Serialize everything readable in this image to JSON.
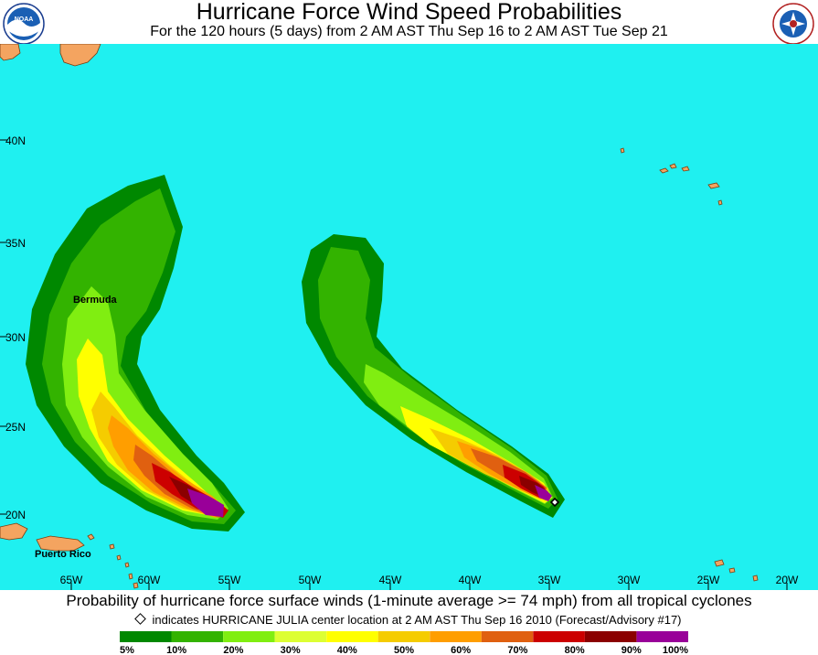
{
  "title": "Hurricane Force Wind Speed Probabilities",
  "subtitle": "For the 120 hours (5 days) from 2 AM AST Thu Sep 16 to 2 AM AST Tue Sep 21",
  "logos": {
    "left": "noaa-logo",
    "right": "national-weather-service-logo"
  },
  "map": {
    "ocean_color": "#1ff0f0",
    "land_color": "#f4a460",
    "lat_labels": [
      "40N",
      "35N",
      "30N",
      "25N",
      "20N"
    ],
    "lon_labels": [
      "65W",
      "60W",
      "55W",
      "50W",
      "45W",
      "40W",
      "35W",
      "30W",
      "25W",
      "20W"
    ],
    "places": [
      "Bermuda",
      "Puerto Rico"
    ]
  },
  "caption": "Probability of hurricane force surface winds (1-minute average >= 74 mph) from all tropical cyclones",
  "note": "indicates HURRICANE JULIA center location at 2 AM AST Thu Sep 16 2010 (Forecast/Advisory #17)",
  "legend": {
    "labels": [
      "5%",
      "10%",
      "20%",
      "30%",
      "40%",
      "50%",
      "60%",
      "70%",
      "80%",
      "90%",
      "100%"
    ],
    "colors": [
      "#008800",
      "#33b300",
      "#80ee11",
      "#ddff33",
      "#ffff00",
      "#f5cc00",
      "#ff9e00",
      "#e06010",
      "#cc0000",
      "#8b0000",
      "#990099"
    ]
  }
}
